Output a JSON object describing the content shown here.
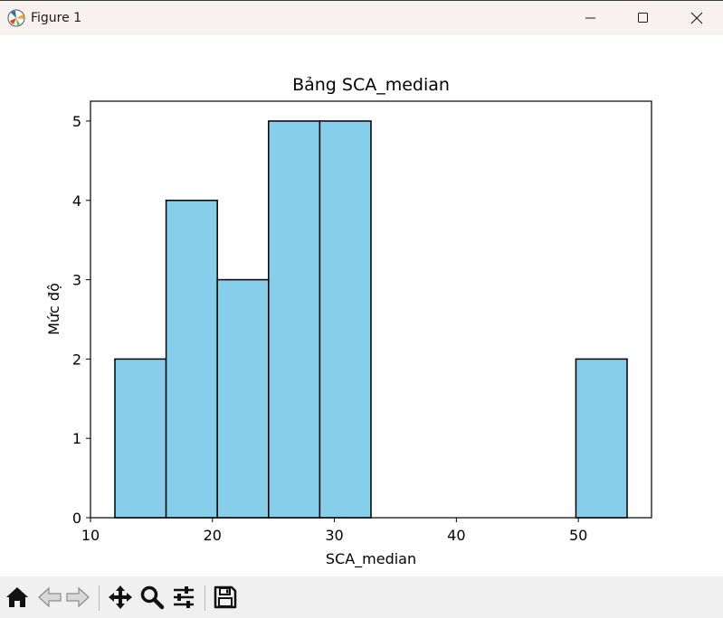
{
  "window": {
    "title": "Figure 1",
    "icons": [
      "matplotlib-logo-icon",
      "minimize-icon",
      "maximize-icon",
      "close-icon"
    ]
  },
  "toolbar": {
    "buttons": [
      "home-icon",
      "back-arrow-icon",
      "forward-arrow-icon",
      "pan-move-icon",
      "zoom-magnifier-icon",
      "configure-subplots-icon",
      "save-floppy-icon"
    ]
  },
  "chart_data": {
    "type": "bar",
    "title": "Bảng SCA_median",
    "xlabel": "SCA_median",
    "ylabel": "Mức độ",
    "bin_edges": [
      12.0,
      16.2,
      20.4,
      24.6,
      28.8,
      33.0,
      37.2,
      41.4,
      45.6,
      49.8,
      54.0
    ],
    "values": [
      2,
      4,
      3,
      5,
      5,
      0,
      0,
      0,
      0,
      2
    ],
    "xlim": [
      10,
      56
    ],
    "ylim": [
      0,
      5.25
    ],
    "xticks": [
      10,
      20,
      30,
      40,
      50
    ],
    "yticks": [
      0,
      1,
      2,
      3,
      4,
      5
    ],
    "bar_color": "#87ceeb",
    "edge_color": "#000000",
    "grid": false
  }
}
